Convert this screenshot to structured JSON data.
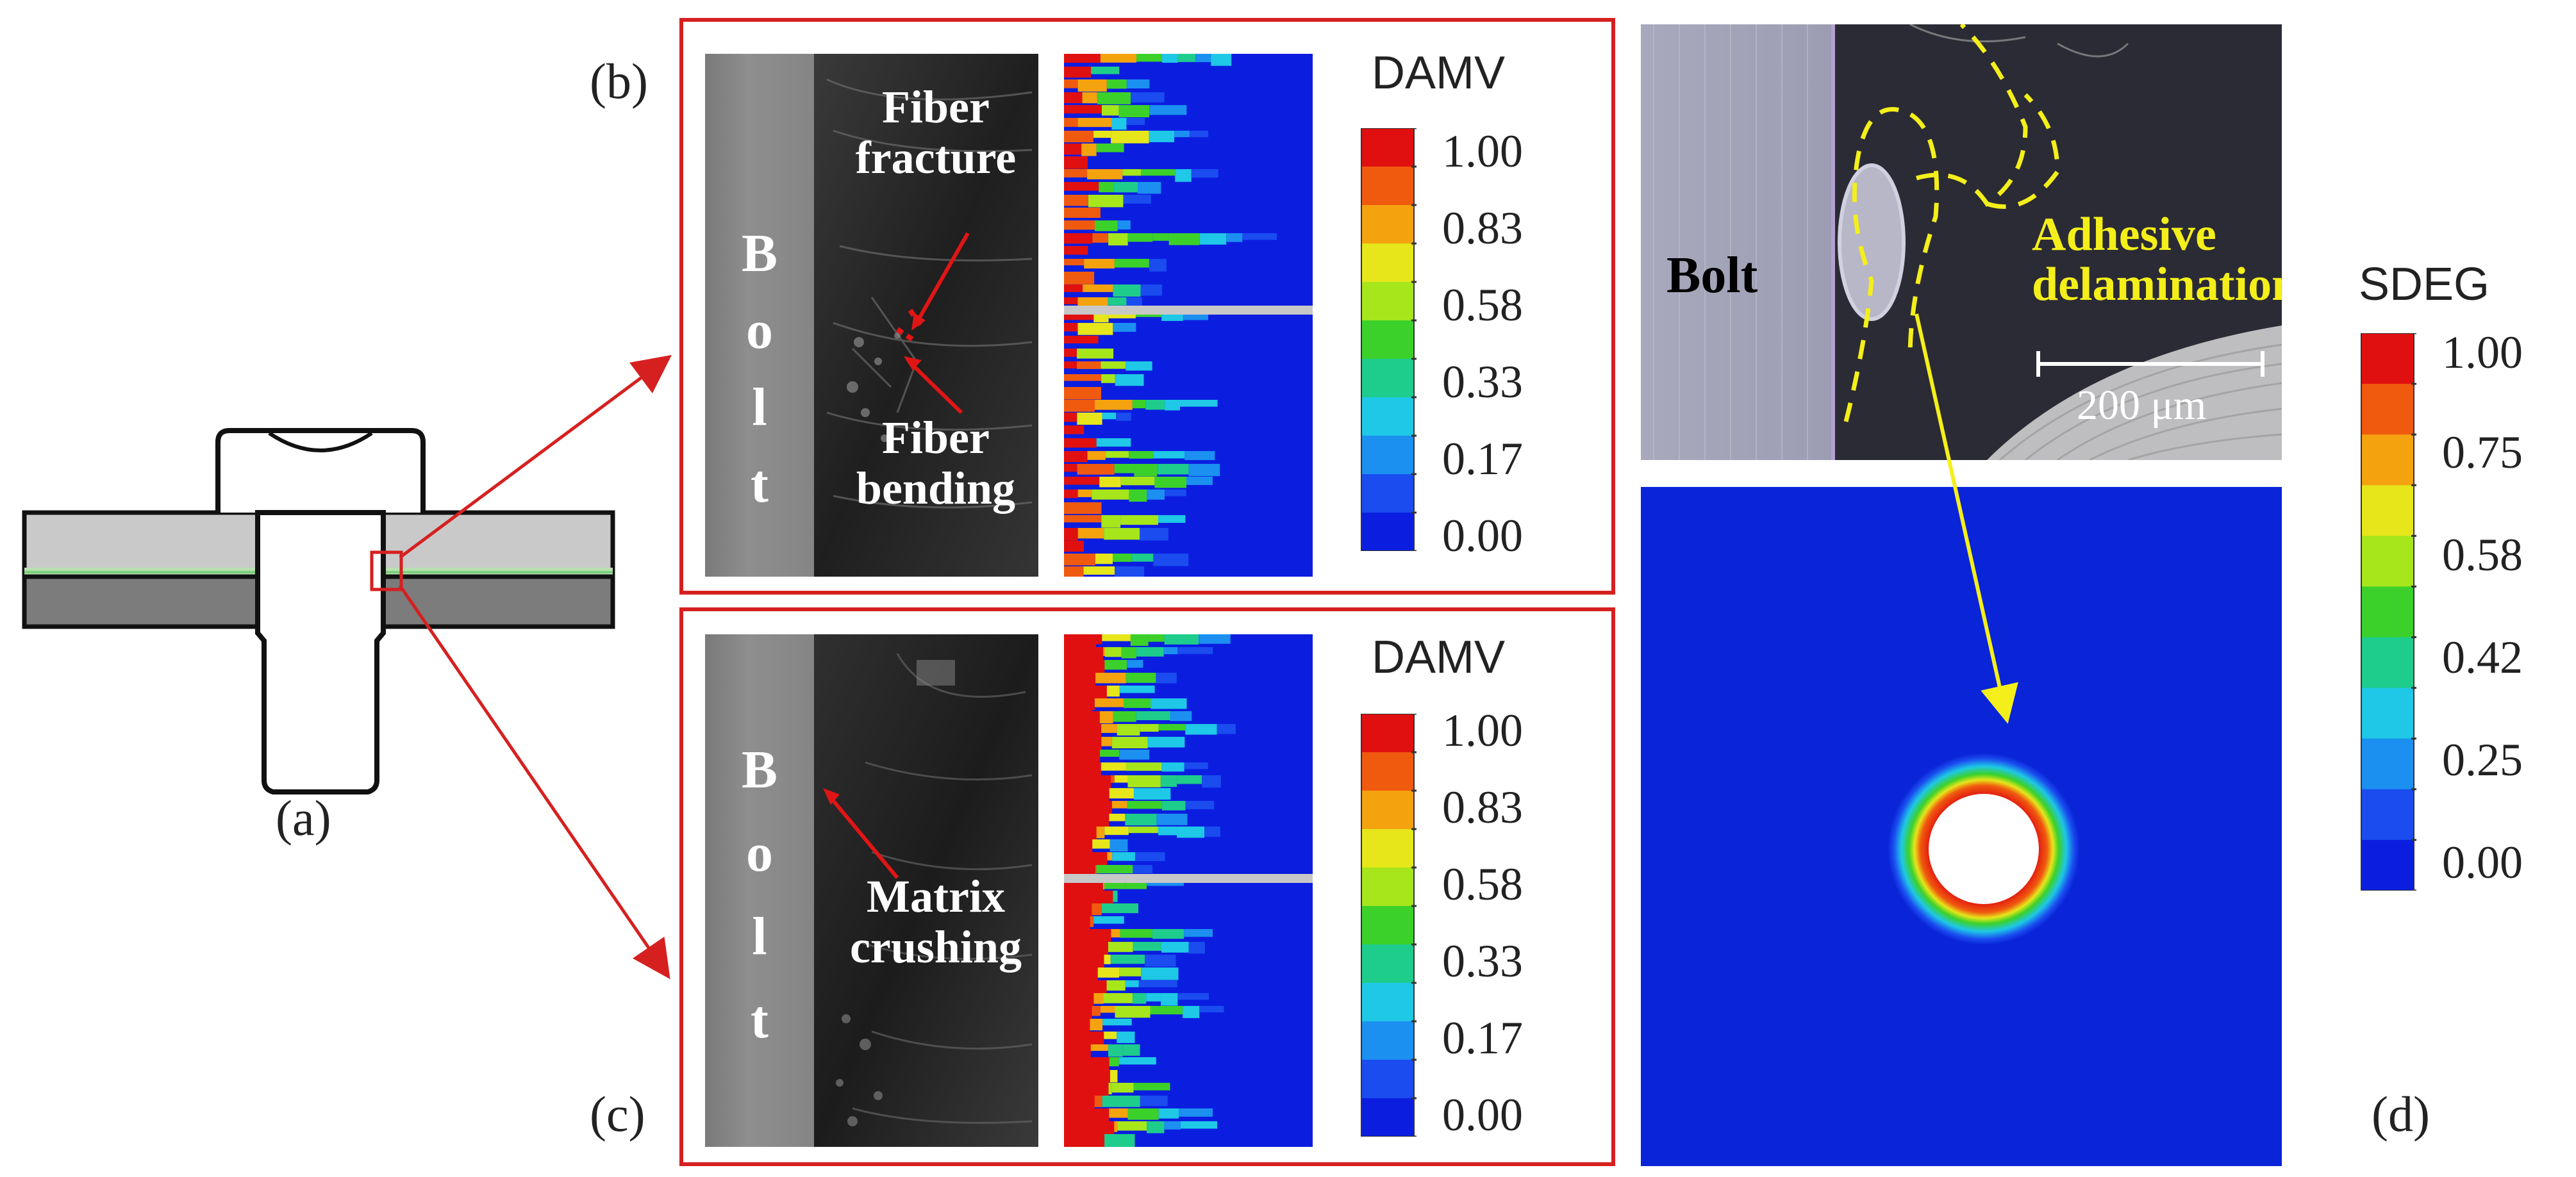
{
  "figure": {
    "panel_a": {
      "letter": "(a)"
    },
    "panel_b": {
      "letter": "(b)",
      "bolt_letters": [
        "B",
        "o",
        "l",
        "t"
      ],
      "labels": {
        "fiber_fracture": "Fiber\nfracture",
        "fiber_bending": "Fiber\nbending"
      },
      "colorbar": {
        "title": "DAMV",
        "ticks": [
          "1.00",
          "0.83",
          "0.58",
          "0.33",
          "0.17",
          "0.00"
        ]
      }
    },
    "panel_c": {
      "letter": "(c)",
      "bolt_letters": [
        "B",
        "o",
        "l",
        "t"
      ],
      "labels": {
        "matrix_crushing": "Matrix\ncrushing"
      },
      "colorbar": {
        "title": "DAMV",
        "ticks": [
          "1.00",
          "0.83",
          "0.58",
          "0.33",
          "0.17",
          "0.00"
        ]
      }
    },
    "panel_d": {
      "letter": "(d)",
      "bolt_label": "Bolt",
      "delam_label": "Adhesive\ndelamination",
      "scale_bar": "200 μm",
      "colorbar": {
        "title": "SDEG",
        "ticks": [
          "1.00",
          "0.75",
          "0.58",
          "0.42",
          "0.25",
          "0.00"
        ]
      }
    },
    "colors": {
      "frame_red": "#d62020",
      "fe_blue": "#0a24d8",
      "annotation_yellow": "#f4ef1a",
      "damv_scale": [
        "#e01010",
        "#f05a0f",
        "#f5a20f",
        "#e6e61a",
        "#a6e61a",
        "#3cd12a",
        "#1ecc8c",
        "#1ec8e6",
        "#1c90f0",
        "#1a4cf0",
        "#0b1ee0"
      ],
      "sdeg_scale": [
        "#e01010",
        "#f05a0f",
        "#f5a20f",
        "#e6e61a",
        "#a6e61a",
        "#3cd12a",
        "#1ecc8c",
        "#1ec8e6",
        "#1c90f0",
        "#1a4cf0",
        "#0b1ee0"
      ]
    }
  }
}
